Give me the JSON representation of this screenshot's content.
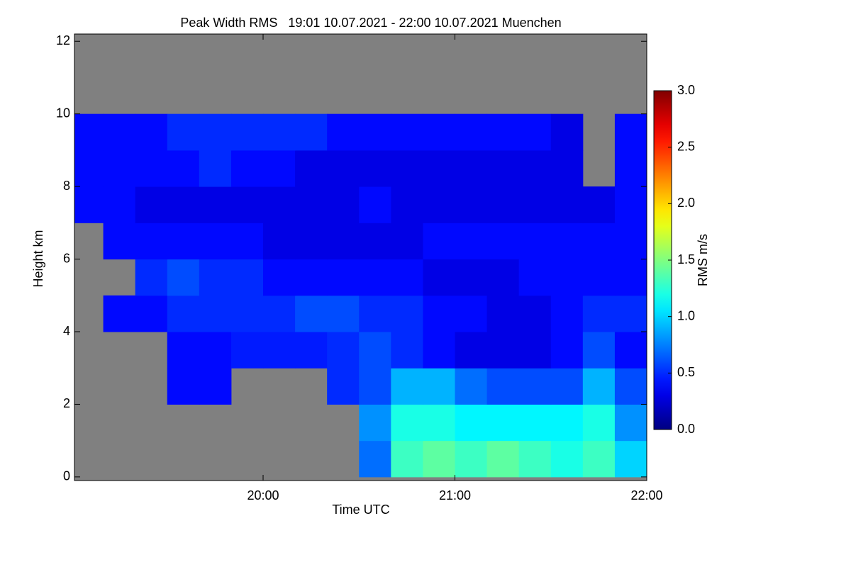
{
  "chart_data": {
    "type": "heatmap",
    "title": "Peak Width RMS   19:01 10.07.2021 - 22:00 10.07.2021 Muenchen",
    "x_label": "Time UTC",
    "y_label": "Height km",
    "xlim": [
      1,
      180
    ],
    "xticks": [
      {
        "value": 60,
        "label": "20:00"
      },
      {
        "value": 120,
        "label": "21:00"
      },
      {
        "value": 180,
        "label": "22:00"
      }
    ],
    "ylim": [
      -0.1,
      12.2
    ],
    "yticks": [
      0,
      2,
      4,
      6,
      8,
      10,
      12
    ],
    "xbins": [
      1,
      10,
      20,
      30,
      40,
      50,
      60,
      70,
      80,
      90,
      100,
      110,
      120,
      130,
      140,
      150,
      160,
      170,
      180
    ],
    "ybins": [
      0,
      1,
      2,
      3,
      4,
      5,
      6,
      7,
      8,
      9,
      10
    ],
    "background": "#808080",
    "colormap": "jet",
    "colorbar": {
      "label": "RMS m/s",
      "lim": [
        0,
        3
      ],
      "ticks": [
        {
          "value": 0,
          "label": "0.0"
        },
        0.5,
        {
          "value": 1,
          "label": "1.0"
        },
        1.5,
        {
          "value": 2,
          "label": "2.0"
        },
        2.5,
        {
          "value": 3,
          "label": "3.0"
        }
      ]
    },
    "z": [
      [
        null,
        null,
        null,
        null,
        null,
        null,
        null,
        null,
        null,
        0.7,
        1.3,
        1.4,
        1.3,
        1.4,
        1.3,
        1.2,
        1.3,
        1.0
      ],
      [
        null,
        null,
        null,
        null,
        null,
        null,
        null,
        null,
        null,
        0.8,
        1.2,
        1.2,
        1.1,
        1.1,
        1.1,
        1.1,
        1.2,
        0.8
      ],
      [
        null,
        null,
        null,
        0.4,
        0.4,
        null,
        null,
        null,
        0.5,
        0.6,
        0.9,
        0.9,
        0.7,
        0.6,
        0.6,
        0.6,
        0.9,
        0.6
      ],
      [
        null,
        null,
        null,
        0.4,
        0.4,
        0.45,
        0.45,
        0.45,
        0.5,
        0.6,
        0.5,
        0.4,
        0.3,
        0.3,
        0.3,
        0.4,
        0.6,
        0.4
      ],
      [
        null,
        0.4,
        0.4,
        0.5,
        0.5,
        0.5,
        0.5,
        0.6,
        0.6,
        0.5,
        0.5,
        0.4,
        0.4,
        0.3,
        0.3,
        0.4,
        0.5,
        0.5
      ],
      [
        null,
        null,
        0.5,
        0.6,
        0.5,
        0.5,
        0.4,
        0.4,
        0.4,
        0.4,
        0.4,
        0.3,
        0.3,
        0.3,
        0.4,
        0.4,
        0.4,
        0.4
      ],
      [
        null,
        0.4,
        0.4,
        0.4,
        0.4,
        0.4,
        0.3,
        0.3,
        0.3,
        0.3,
        0.3,
        0.4,
        0.4,
        0.4,
        0.4,
        0.4,
        0.4,
        0.4
      ],
      [
        0.4,
        0.4,
        0.3,
        0.3,
        0.3,
        0.3,
        0.3,
        0.3,
        0.3,
        0.4,
        0.3,
        0.3,
        0.3,
        0.3,
        0.3,
        0.3,
        0.3,
        0.4
      ],
      [
        0.4,
        0.4,
        0.4,
        0.4,
        0.5,
        0.4,
        0.4,
        0.3,
        0.3,
        0.3,
        0.3,
        0.3,
        0.3,
        0.3,
        0.3,
        0.3,
        null,
        0.4
      ],
      [
        0.4,
        0.4,
        0.4,
        0.5,
        0.5,
        0.5,
        0.5,
        0.5,
        0.4,
        0.4,
        0.4,
        0.4,
        0.4,
        0.4,
        0.4,
        0.3,
        null,
        0.4
      ]
    ]
  }
}
